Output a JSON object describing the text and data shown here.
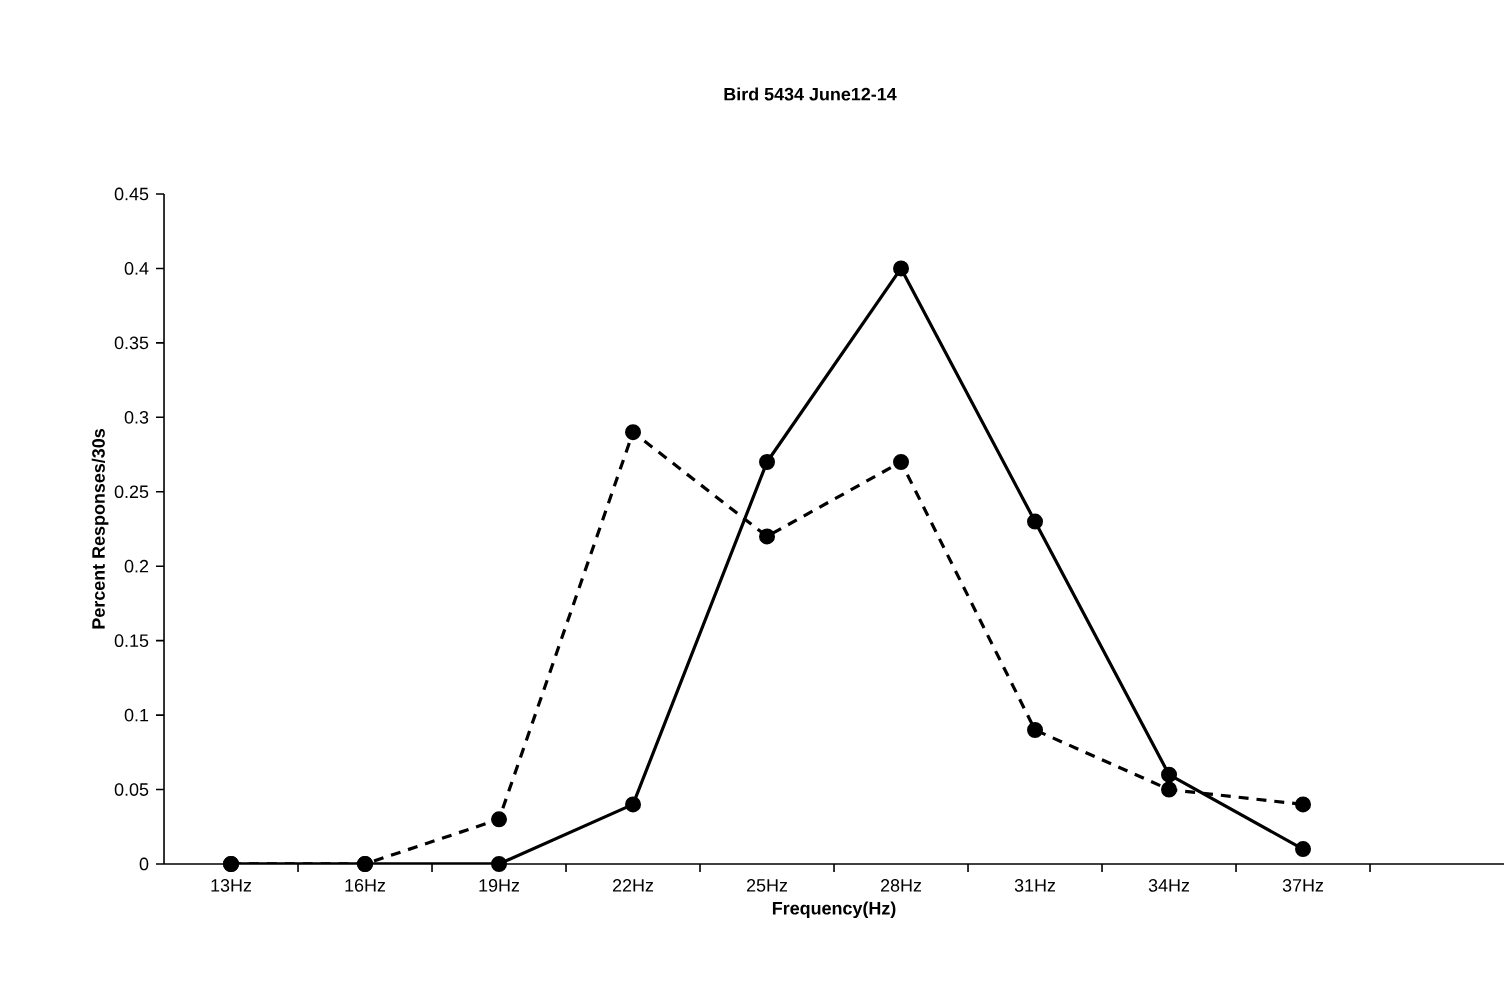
{
  "chart_data": {
    "type": "line",
    "title": "Bird 5434 June12-14",
    "xlabel": "Frequency(Hz)",
    "ylabel": "Percent Responses/30s",
    "categories": [
      "13Hz",
      "16Hz",
      "19Hz",
      "22Hz",
      "25Hz",
      "28Hz",
      "31Hz",
      "34Hz",
      "37Hz",
      null
    ],
    "series": [
      {
        "color": "#000000",
        "line_style": "solid",
        "values": [
          0,
          0,
          0,
          0.04,
          0.27,
          0.4,
          0.23,
          0.06,
          0.01,
          null
        ]
      },
      {
        "color": "#000000",
        "line_style": "dashed",
        "values": [
          0,
          0,
          0.03,
          0.29,
          0.22,
          0.27,
          0.09,
          0.05,
          0.04,
          null
        ]
      }
    ],
    "ylim": [
      0,
      0.45
    ],
    "yticks": [
      0,
      0.05,
      0.1,
      0.15,
      0.2,
      0.25,
      0.3,
      0.35,
      0.4,
      0.45
    ],
    "marker": "circle"
  }
}
